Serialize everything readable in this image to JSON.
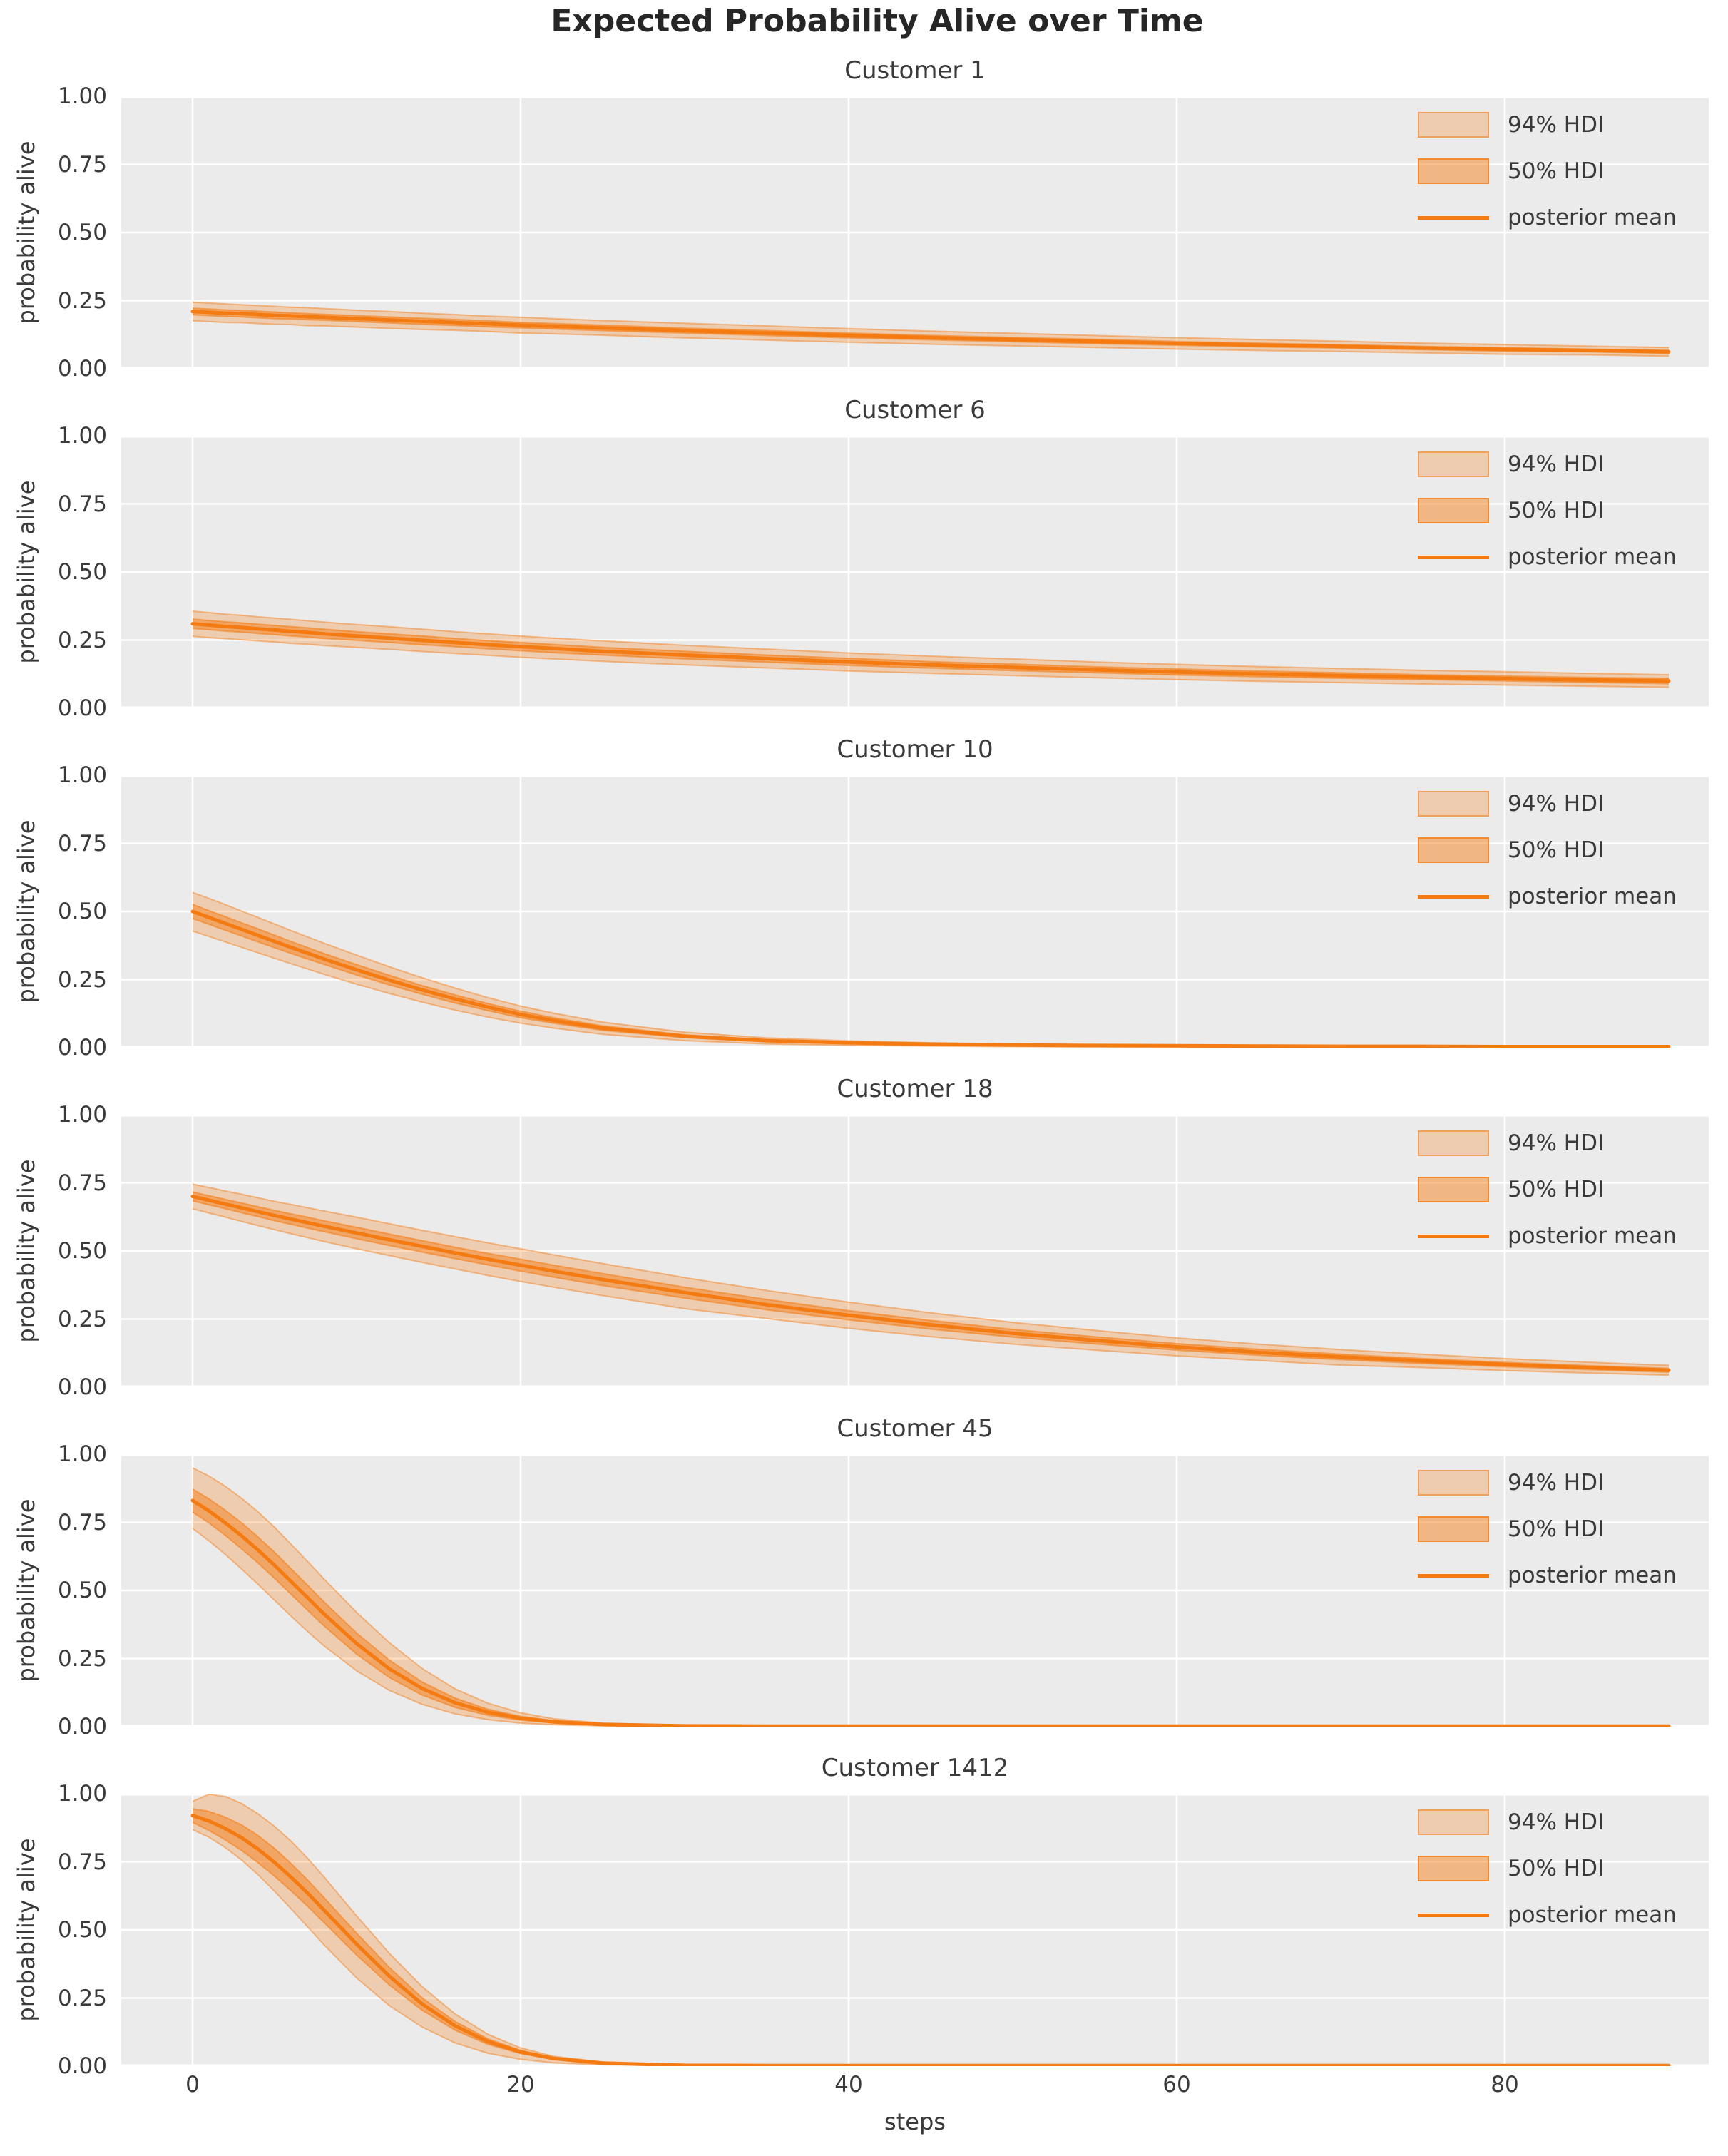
{
  "figure": {
    "title": "Expected Probability Alive over Time"
  },
  "axes": {
    "xlabel": "steps",
    "ylabel": "probability alive",
    "x_ticks": [
      0,
      20,
      40,
      60,
      80
    ],
    "x_tick_labels": [
      "0",
      "20",
      "40",
      "60",
      "80"
    ],
    "y_ticks": [
      0.0,
      0.25,
      0.5,
      0.75,
      1.0
    ],
    "y_tick_labels": [
      "0.00",
      "0.25",
      "0.50",
      "0.75",
      "1.00"
    ],
    "ylim": [
      0,
      1
    ],
    "xlim": [
      -4.3,
      92.4
    ],
    "grid": true
  },
  "legend": {
    "position": "upper right",
    "entries": [
      {
        "label": "94% HDI",
        "type": "band-light"
      },
      {
        "label": "50% HDI",
        "type": "band-dark"
      },
      {
        "label": "posterior mean",
        "type": "line"
      }
    ]
  },
  "colors": {
    "line": "#f47b12",
    "band_rgb": "244,123,18",
    "band94_alpha": 0.27,
    "band50_alpha": 0.48,
    "axes_bg": "#ebebeb",
    "grid": "#ffffff",
    "text": "#3a3a3a",
    "title_text": "#262626"
  },
  "chart_data": {
    "type": "line",
    "title": "Expected Probability Alive over Time",
    "xlabel": "steps",
    "ylabel": "probability alive",
    "steps": [
      0,
      1,
      2,
      3,
      4,
      5,
      6,
      7,
      8,
      10,
      12,
      14,
      16,
      18,
      20,
      22,
      25,
      30,
      35,
      40,
      45,
      50,
      55,
      60,
      65,
      70,
      75,
      80,
      85,
      90
    ],
    "subplots": [
      {
        "customer": "Customer 1",
        "mean": [
          0.21,
          0.207,
          0.204,
          0.202,
          0.199,
          0.196,
          0.194,
          0.191,
          0.189,
          0.184,
          0.179,
          0.174,
          0.17,
          0.165,
          0.16,
          0.156,
          0.15,
          0.14,
          0.131,
          0.122,
          0.114,
          0.107,
          0.1,
          0.093,
          0.087,
          0.082,
          0.076,
          0.071,
          0.067,
          0.062
        ],
        "hdi94_upper": [
          0.244,
          0.241,
          0.238,
          0.235,
          0.232,
          0.229,
          0.226,
          0.224,
          0.221,
          0.215,
          0.21,
          0.204,
          0.199,
          0.193,
          0.189,
          0.184,
          0.177,
          0.167,
          0.157,
          0.147,
          0.138,
          0.13,
          0.122,
          0.114,
          0.107,
          0.101,
          0.094,
          0.089,
          0.083,
          0.078
        ],
        "hdi94_lower": [
          0.176,
          0.173,
          0.17,
          0.169,
          0.166,
          0.163,
          0.162,
          0.158,
          0.157,
          0.153,
          0.148,
          0.144,
          0.141,
          0.137,
          0.131,
          0.128,
          0.123,
          0.113,
          0.105,
          0.097,
          0.09,
          0.084,
          0.078,
          0.072,
          0.067,
          0.063,
          0.058,
          0.053,
          0.051,
          0.046
        ],
        "hdi50_upper": [
          0.222,
          0.219,
          0.216,
          0.214,
          0.211,
          0.208,
          0.205,
          0.202,
          0.2,
          0.195,
          0.19,
          0.185,
          0.181,
          0.176,
          0.17,
          0.166,
          0.16,
          0.149,
          0.14,
          0.131,
          0.122,
          0.115,
          0.108,
          0.1,
          0.094,
          0.088,
          0.082,
          0.077,
          0.072,
          0.067
        ],
        "hdi50_lower": [
          0.198,
          0.195,
          0.192,
          0.19,
          0.187,
          0.184,
          0.183,
          0.18,
          0.178,
          0.173,
          0.168,
          0.163,
          0.159,
          0.154,
          0.15,
          0.146,
          0.14,
          0.131,
          0.122,
          0.113,
          0.106,
          0.099,
          0.092,
          0.086,
          0.08,
          0.076,
          0.07,
          0.065,
          0.062,
          0.057
        ]
      },
      {
        "customer": "Customer 6",
        "mean": [
          0.31,
          0.305,
          0.3,
          0.296,
          0.291,
          0.287,
          0.282,
          0.278,
          0.273,
          0.265,
          0.257,
          0.249,
          0.241,
          0.233,
          0.226,
          0.219,
          0.209,
          0.195,
          0.182,
          0.17,
          0.159,
          0.15,
          0.141,
          0.133,
          0.126,
          0.12,
          0.114,
          0.109,
          0.104,
          0.1
        ],
        "hdi94_upper": [
          0.356,
          0.351,
          0.345,
          0.341,
          0.335,
          0.331,
          0.326,
          0.321,
          0.316,
          0.307,
          0.299,
          0.29,
          0.281,
          0.273,
          0.265,
          0.257,
          0.247,
          0.231,
          0.217,
          0.203,
          0.191,
          0.181,
          0.17,
          0.161,
          0.153,
          0.146,
          0.139,
          0.134,
          0.128,
          0.123
        ],
        "hdi94_lower": [
          0.264,
          0.259,
          0.255,
          0.251,
          0.247,
          0.243,
          0.238,
          0.235,
          0.23,
          0.223,
          0.216,
          0.208,
          0.201,
          0.194,
          0.187,
          0.181,
          0.172,
          0.159,
          0.148,
          0.137,
          0.128,
          0.12,
          0.112,
          0.105,
          0.099,
          0.094,
          0.089,
          0.085,
          0.081,
          0.077
        ],
        "hdi50_upper": [
          0.327,
          0.322,
          0.317,
          0.313,
          0.308,
          0.304,
          0.299,
          0.295,
          0.29,
          0.281,
          0.273,
          0.265,
          0.256,
          0.248,
          0.241,
          0.234,
          0.223,
          0.209,
          0.195,
          0.183,
          0.171,
          0.162,
          0.152,
          0.144,
          0.136,
          0.13,
          0.123,
          0.118,
          0.113,
          0.11
        ],
        "hdi50_lower": [
          0.293,
          0.288,
          0.283,
          0.279,
          0.274,
          0.27,
          0.265,
          0.261,
          0.256,
          0.249,
          0.241,
          0.233,
          0.226,
          0.218,
          0.211,
          0.204,
          0.195,
          0.181,
          0.169,
          0.157,
          0.147,
          0.138,
          0.13,
          0.122,
          0.116,
          0.11,
          0.105,
          0.1,
          0.095,
          0.09
        ]
      },
      {
        "customer": "Customer 10",
        "mean": [
          0.5,
          0.478,
          0.456,
          0.434,
          0.412,
          0.39,
          0.368,
          0.347,
          0.326,
          0.286,
          0.248,
          0.212,
          0.179,
          0.149,
          0.122,
          0.1,
          0.072,
          0.042,
          0.026,
          0.018,
          0.013,
          0.01,
          0.008,
          0.007,
          0.006,
          0.005,
          0.005,
          0.004,
          0.004,
          0.004
        ],
        "hdi94_upper": [
          0.57,
          0.548,
          0.525,
          0.501,
          0.478,
          0.454,
          0.43,
          0.407,
          0.384,
          0.34,
          0.297,
          0.257,
          0.219,
          0.184,
          0.153,
          0.127,
          0.094,
          0.057,
          0.036,
          0.025,
          0.018,
          0.014,
          0.011,
          0.01,
          0.009,
          0.008,
          0.007,
          0.006,
          0.006,
          0.006
        ],
        "hdi94_lower": [
          0.428,
          0.408,
          0.388,
          0.368,
          0.348,
          0.328,
          0.308,
          0.289,
          0.27,
          0.233,
          0.199,
          0.167,
          0.138,
          0.112,
          0.09,
          0.072,
          0.049,
          0.026,
          0.014,
          0.009,
          0.006,
          0.004,
          0.003,
          0.003,
          0.002,
          0.002,
          0.002,
          0.002,
          0.002,
          0.002
        ],
        "hdi50_upper": [
          0.526,
          0.503,
          0.481,
          0.458,
          0.436,
          0.413,
          0.39,
          0.368,
          0.346,
          0.305,
          0.266,
          0.228,
          0.194,
          0.162,
          0.134,
          0.11,
          0.08,
          0.047,
          0.029,
          0.021,
          0.015,
          0.012,
          0.009,
          0.008,
          0.007,
          0.006,
          0.006,
          0.005,
          0.005,
          0.005
        ],
        "hdi50_lower": [
          0.474,
          0.453,
          0.431,
          0.41,
          0.388,
          0.367,
          0.346,
          0.326,
          0.306,
          0.267,
          0.23,
          0.196,
          0.164,
          0.136,
          0.11,
          0.09,
          0.064,
          0.037,
          0.022,
          0.015,
          0.011,
          0.008,
          0.007,
          0.006,
          0.005,
          0.004,
          0.004,
          0.003,
          0.003,
          0.003
        ]
      },
      {
        "customer": "Customer 18",
        "mean": [
          0.7,
          0.686,
          0.672,
          0.658,
          0.644,
          0.63,
          0.617,
          0.604,
          0.591,
          0.566,
          0.541,
          0.517,
          0.493,
          0.47,
          0.448,
          0.426,
          0.395,
          0.347,
          0.303,
          0.264,
          0.229,
          0.198,
          0.172,
          0.148,
          0.128,
          0.111,
          0.096,
          0.083,
          0.072,
          0.062
        ],
        "hdi94_upper": [
          0.745,
          0.733,
          0.72,
          0.708,
          0.695,
          0.682,
          0.671,
          0.659,
          0.647,
          0.624,
          0.6,
          0.576,
          0.553,
          0.53,
          0.508,
          0.486,
          0.454,
          0.402,
          0.355,
          0.312,
          0.273,
          0.238,
          0.209,
          0.181,
          0.158,
          0.138,
          0.121,
          0.105,
          0.092,
          0.08
        ],
        "hdi94_lower": [
          0.655,
          0.639,
          0.624,
          0.608,
          0.593,
          0.578,
          0.563,
          0.549,
          0.535,
          0.508,
          0.483,
          0.458,
          0.434,
          0.41,
          0.388,
          0.367,
          0.336,
          0.288,
          0.252,
          0.216,
          0.185,
          0.158,
          0.136,
          0.115,
          0.098,
          0.081,
          0.072,
          0.061,
          0.052,
          0.044
        ],
        "hdi50_upper": [
          0.716,
          0.703,
          0.689,
          0.676,
          0.662,
          0.649,
          0.636,
          0.624,
          0.611,
          0.587,
          0.562,
          0.538,
          0.514,
          0.491,
          0.47,
          0.448,
          0.417,
          0.367,
          0.322,
          0.281,
          0.245,
          0.212,
          0.185,
          0.16,
          0.139,
          0.121,
          0.105,
          0.091,
          0.079,
          0.069
        ],
        "hdi50_lower": [
          0.684,
          0.669,
          0.655,
          0.64,
          0.626,
          0.611,
          0.598,
          0.584,
          0.571,
          0.545,
          0.52,
          0.496,
          0.472,
          0.449,
          0.426,
          0.404,
          0.373,
          0.327,
          0.284,
          0.247,
          0.213,
          0.184,
          0.159,
          0.136,
          0.117,
          0.101,
          0.087,
          0.075,
          0.065,
          0.055
        ]
      },
      {
        "customer": "Customer 45",
        "mean": [
          0.83,
          0.792,
          0.748,
          0.7,
          0.648,
          0.592,
          0.533,
          0.474,
          0.415,
          0.305,
          0.212,
          0.14,
          0.088,
          0.053,
          0.031,
          0.018,
          0.008,
          0.003,
          0.002,
          0.002,
          0.002,
          0.002,
          0.002,
          0.002,
          0.002,
          0.002,
          0.002,
          0.002,
          0.002,
          0.002
        ],
        "hdi94_upper": [
          0.95,
          0.92,
          0.882,
          0.838,
          0.788,
          0.732,
          0.67,
          0.607,
          0.543,
          0.42,
          0.308,
          0.213,
          0.139,
          0.086,
          0.051,
          0.029,
          0.013,
          0.005,
          0.003,
          0.003,
          0.003,
          0.003,
          0.003,
          0.003,
          0.003,
          0.003,
          0.003,
          0.003,
          0.003,
          0.003
        ],
        "hdi94_lower": [
          0.728,
          0.682,
          0.632,
          0.578,
          0.522,
          0.464,
          0.406,
          0.35,
          0.297,
          0.205,
          0.133,
          0.082,
          0.047,
          0.026,
          0.013,
          0.007,
          0.003,
          0.001,
          0.001,
          0.001,
          0.001,
          0.001,
          0.001,
          0.001,
          0.001,
          0.001,
          0.001,
          0.001,
          0.001,
          0.001
        ],
        "hdi50_upper": [
          0.872,
          0.836,
          0.794,
          0.748,
          0.696,
          0.64,
          0.58,
          0.52,
          0.459,
          0.344,
          0.244,
          0.164,
          0.105,
          0.064,
          0.038,
          0.022,
          0.01,
          0.004,
          0.003,
          0.003,
          0.003,
          0.003,
          0.002,
          0.002,
          0.002,
          0.002,
          0.002,
          0.002,
          0.002,
          0.002
        ],
        "hdi50_lower": [
          0.788,
          0.748,
          0.702,
          0.652,
          0.6,
          0.544,
          0.486,
          0.428,
          0.371,
          0.266,
          0.18,
          0.116,
          0.071,
          0.042,
          0.024,
          0.014,
          0.006,
          0.002,
          0.001,
          0.001,
          0.001,
          0.001,
          0.001,
          0.001,
          0.001,
          0.001,
          0.001,
          0.001,
          0.001,
          0.001
        ]
      },
      {
        "customer": "Customer 1412",
        "mean": [
          0.92,
          0.9,
          0.872,
          0.838,
          0.796,
          0.748,
          0.694,
          0.636,
          0.574,
          0.448,
          0.33,
          0.228,
          0.148,
          0.09,
          0.052,
          0.028,
          0.011,
          0.003,
          0.002,
          0.002,
          0.002,
          0.002,
          0.002,
          0.002,
          0.002,
          0.002,
          0.002,
          0.002,
          0.002,
          0.002
        ],
        "hdi94_upper": [
          0.972,
          0.998,
          0.99,
          0.964,
          0.926,
          0.88,
          0.826,
          0.764,
          0.696,
          0.552,
          0.414,
          0.292,
          0.192,
          0.117,
          0.067,
          0.036,
          0.015,
          0.004,
          0.003,
          0.003,
          0.003,
          0.003,
          0.003,
          0.003,
          0.003,
          0.003,
          0.003,
          0.003,
          0.003,
          0.003
        ],
        "hdi94_lower": [
          0.868,
          0.84,
          0.802,
          0.756,
          0.702,
          0.642,
          0.578,
          0.512,
          0.446,
          0.324,
          0.222,
          0.143,
          0.085,
          0.047,
          0.025,
          0.012,
          0.005,
          0.001,
          0.001,
          0.001,
          0.001,
          0.001,
          0.001,
          0.001,
          0.001,
          0.001,
          0.001,
          0.001,
          0.001,
          0.001
        ],
        "hdi50_upper": [
          0.945,
          0.935,
          0.914,
          0.885,
          0.846,
          0.799,
          0.744,
          0.684,
          0.62,
          0.488,
          0.362,
          0.251,
          0.164,
          0.1,
          0.058,
          0.031,
          0.013,
          0.004,
          0.003,
          0.003,
          0.003,
          0.003,
          0.003,
          0.003,
          0.003,
          0.003,
          0.003,
          0.003,
          0.003,
          0.003
        ],
        "hdi50_lower": [
          0.895,
          0.865,
          0.83,
          0.791,
          0.746,
          0.697,
          0.644,
          0.588,
          0.528,
          0.408,
          0.298,
          0.205,
          0.132,
          0.08,
          0.046,
          0.025,
          0.009,
          0.002,
          0.001,
          0.001,
          0.001,
          0.001,
          0.001,
          0.001,
          0.001,
          0.001,
          0.001,
          0.001,
          0.001,
          0.001
        ]
      }
    ]
  }
}
